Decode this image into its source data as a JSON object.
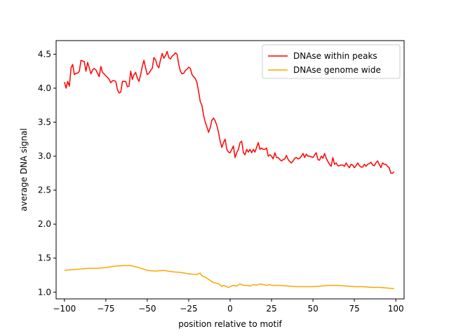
{
  "chart_data": {
    "type": "line",
    "title": "",
    "xlabel": "position relative to motif",
    "ylabel": "average DNA signal",
    "xlim": [
      -105,
      105
    ],
    "ylim": [
      0.9,
      4.7
    ],
    "xticks": [
      -100,
      -75,
      -50,
      -25,
      0,
      25,
      50,
      75,
      100
    ],
    "yticks": [
      1.0,
      1.5,
      2.0,
      2.5,
      3.0,
      3.5,
      4.0,
      4.5
    ],
    "grid": false,
    "legend_position": "top-right",
    "series": [
      {
        "name": "DNAse within peaks",
        "color": "#ff0000",
        "points": [
          [
            -100,
            4.09
          ],
          [
            -99,
            4.0
          ],
          [
            -98,
            4.1
          ],
          [
            -97,
            4.03
          ],
          [
            -96,
            4.3
          ],
          [
            -95,
            4.35
          ],
          [
            -94,
            4.2
          ],
          [
            -93,
            4.22
          ],
          [
            -92,
            4.22
          ],
          [
            -91,
            4.25
          ],
          [
            -90,
            4.41
          ],
          [
            -89,
            4.4
          ],
          [
            -88,
            4.39
          ],
          [
            -87,
            4.25
          ],
          [
            -86,
            4.38
          ],
          [
            -85,
            4.3
          ],
          [
            -84,
            4.21
          ],
          [
            -83,
            4.27
          ],
          [
            -82,
            4.29
          ],
          [
            -81,
            4.27
          ],
          [
            -80,
            4.22
          ],
          [
            -79,
            4.17
          ],
          [
            -78,
            4.32
          ],
          [
            -77,
            4.23
          ],
          [
            -76,
            4.21
          ],
          [
            -75,
            4.18
          ],
          [
            -74,
            4.16
          ],
          [
            -73,
            4.13
          ],
          [
            -72,
            4.08
          ],
          [
            -71,
            4.11
          ],
          [
            -70,
            4.11
          ],
          [
            -69,
            4.1
          ],
          [
            -68,
            3.98
          ],
          [
            -67,
            3.93
          ],
          [
            -66,
            3.94
          ],
          [
            -65,
            4.1
          ],
          [
            -64,
            4.1
          ],
          [
            -63,
            4.1
          ],
          [
            -62,
            4.02
          ],
          [
            -61,
            4.03
          ],
          [
            -60,
            4.25
          ],
          [
            -59,
            4.13
          ],
          [
            -58,
            4.2
          ],
          [
            -57,
            4.23
          ],
          [
            -56,
            4.15
          ],
          [
            -55,
            4.1
          ],
          [
            -54,
            4.2
          ],
          [
            -53,
            4.32
          ],
          [
            -52,
            4.41
          ],
          [
            -51,
            4.3
          ],
          [
            -50,
            4.2
          ],
          [
            -49,
            4.22
          ],
          [
            -48,
            4.26
          ],
          [
            -47,
            4.29
          ],
          [
            -46,
            4.45
          ],
          [
            -45,
            4.42
          ],
          [
            -44,
            4.33
          ],
          [
            -43,
            4.3
          ],
          [
            -42,
            4.42
          ],
          [
            -41,
            4.51
          ],
          [
            -40,
            4.44
          ],
          [
            -39,
            4.48
          ],
          [
            -38,
            4.54
          ],
          [
            -37,
            4.45
          ],
          [
            -36,
            4.43
          ],
          [
            -35,
            4.47
          ],
          [
            -34,
            4.49
          ],
          [
            -33,
            4.52
          ],
          [
            -32,
            4.5
          ],
          [
            -31,
            4.35
          ],
          [
            -30,
            4.25
          ],
          [
            -29,
            4.21
          ],
          [
            -28,
            4.22
          ],
          [
            -27,
            4.26
          ],
          [
            -26,
            4.28
          ],
          [
            -25,
            4.31
          ],
          [
            -24,
            4.29
          ],
          [
            -23,
            4.2
          ],
          [
            -22,
            4.17
          ],
          [
            -21,
            4.14
          ],
          [
            -20,
            4.08
          ],
          [
            -19,
            3.95
          ],
          [
            -18,
            3.8
          ],
          [
            -17,
            3.75
          ],
          [
            -16,
            3.6
          ],
          [
            -15,
            3.5
          ],
          [
            -14,
            3.43
          ],
          [
            -13,
            3.35
          ],
          [
            -12,
            3.42
          ],
          [
            -11,
            3.53
          ],
          [
            -10,
            3.56
          ],
          [
            -9,
            3.52
          ],
          [
            -8,
            3.45
          ],
          [
            -7,
            3.35
          ],
          [
            -6,
            3.22
          ],
          [
            -5,
            3.13
          ],
          [
            -4,
            3.2
          ],
          [
            -3,
            3.25
          ],
          [
            -2,
            3.1
          ],
          [
            -1,
            3.06
          ],
          [
            0,
            3.05
          ],
          [
            1,
            3.1
          ],
          [
            2,
            3.15
          ],
          [
            3,
            2.98
          ],
          [
            4,
            3.05
          ],
          [
            5,
            3.1
          ],
          [
            6,
            3.2
          ],
          [
            7,
            3.22
          ],
          [
            8,
            3.05
          ],
          [
            9,
            3.02
          ],
          [
            10,
            3.1
          ],
          [
            11,
            3.06
          ],
          [
            12,
            3.1
          ],
          [
            13,
            3.05
          ],
          [
            14,
            3.1
          ],
          [
            15,
            3.06
          ],
          [
            16,
            3.13
          ],
          [
            17,
            3.2
          ],
          [
            18,
            3.1
          ],
          [
            19,
            3.12
          ],
          [
            20,
            3.1
          ],
          [
            21,
            3.1
          ],
          [
            22,
            3.12
          ],
          [
            23,
            3.0
          ],
          [
            24,
            3.02
          ],
          [
            25,
            3.0
          ],
          [
            26,
            2.96
          ],
          [
            27,
            3.05
          ],
          [
            28,
            2.98
          ],
          [
            29,
            2.98
          ],
          [
            30,
            2.95
          ],
          [
            31,
            2.93
          ],
          [
            32,
            2.95
          ],
          [
            33,
            2.96
          ],
          [
            34,
            3.01
          ],
          [
            35,
            2.95
          ],
          [
            36,
            2.92
          ],
          [
            37,
            2.9
          ],
          [
            38,
            2.93
          ],
          [
            39,
            2.97
          ],
          [
            40,
            2.98
          ],
          [
            41,
            2.96
          ],
          [
            42,
            2.97
          ],
          [
            43,
            3.0
          ],
          [
            44,
            3.04
          ],
          [
            45,
            2.98
          ],
          [
            46,
            3.03
          ],
          [
            47,
            3.0
          ],
          [
            48,
            3.0
          ],
          [
            49,
            2.99
          ],
          [
            50,
            2.98
          ],
          [
            51,
            3.02
          ],
          [
            52,
            3.05
          ],
          [
            53,
            2.95
          ],
          [
            54,
            2.94
          ],
          [
            55,
            3.0
          ],
          [
            56,
            2.97
          ],
          [
            57,
            3.04
          ],
          [
            58,
            2.97
          ],
          [
            59,
            2.92
          ],
          [
            60,
            2.88
          ],
          [
            61,
            2.85
          ],
          [
            62,
            2.98
          ],
          [
            63,
            2.88
          ],
          [
            64,
            2.9
          ],
          [
            65,
            2.86
          ],
          [
            66,
            2.86
          ],
          [
            67,
            2.87
          ],
          [
            68,
            2.87
          ],
          [
            69,
            2.85
          ],
          [
            70,
            2.9
          ],
          [
            71,
            2.86
          ],
          [
            72,
            2.83
          ],
          [
            73,
            2.88
          ],
          [
            74,
            2.87
          ],
          [
            75,
            2.83
          ],
          [
            76,
            2.86
          ],
          [
            77,
            2.9
          ],
          [
            78,
            2.86
          ],
          [
            79,
            2.84
          ],
          [
            80,
            2.84
          ],
          [
            81,
            2.88
          ],
          [
            82,
            2.85
          ],
          [
            83,
            2.88
          ],
          [
            84,
            2.89
          ],
          [
            85,
            2.91
          ],
          [
            86,
            2.87
          ],
          [
            87,
            2.86
          ],
          [
            88,
            2.9
          ],
          [
            89,
            2.93
          ],
          [
            90,
            2.88
          ],
          [
            91,
            2.83
          ],
          [
            92,
            2.9
          ],
          [
            93,
            2.88
          ],
          [
            94,
            2.88
          ],
          [
            95,
            2.85
          ],
          [
            96,
            2.83
          ],
          [
            97,
            2.75
          ],
          [
            98,
            2.75
          ],
          [
            99,
            2.77
          ]
        ]
      },
      {
        "name": "DNAse genome wide",
        "color": "#ffa500",
        "points": [
          [
            -100,
            1.32
          ],
          [
            -95,
            1.33
          ],
          [
            -90,
            1.34
          ],
          [
            -85,
            1.35
          ],
          [
            -80,
            1.35
          ],
          [
            -75,
            1.36
          ],
          [
            -70,
            1.38
          ],
          [
            -65,
            1.39
          ],
          [
            -60,
            1.39
          ],
          [
            -55,
            1.36
          ],
          [
            -50,
            1.32
          ],
          [
            -45,
            1.31
          ],
          [
            -40,
            1.32
          ],
          [
            -35,
            1.3
          ],
          [
            -30,
            1.29
          ],
          [
            -25,
            1.27
          ],
          [
            -22,
            1.26
          ],
          [
            -20,
            1.26
          ],
          [
            -18,
            1.28
          ],
          [
            -17,
            1.24
          ],
          [
            -15,
            1.22
          ],
          [
            -12,
            1.17
          ],
          [
            -10,
            1.14
          ],
          [
            -8,
            1.13
          ],
          [
            -6,
            1.11
          ],
          [
            -5,
            1.08
          ],
          [
            -4,
            1.1
          ],
          [
            -3,
            1.09
          ],
          [
            -1,
            1.07
          ],
          [
            0,
            1.08
          ],
          [
            2,
            1.1
          ],
          [
            4,
            1.09
          ],
          [
            6,
            1.12
          ],
          [
            8,
            1.1
          ],
          [
            10,
            1.1
          ],
          [
            12,
            1.09
          ],
          [
            14,
            1.11
          ],
          [
            16,
            1.1
          ],
          [
            18,
            1.12
          ],
          [
            20,
            1.11
          ],
          [
            22,
            1.1
          ],
          [
            24,
            1.11
          ],
          [
            25,
            1.1
          ],
          [
            30,
            1.1
          ],
          [
            35,
            1.09
          ],
          [
            40,
            1.08
          ],
          [
            45,
            1.08
          ],
          [
            50,
            1.08
          ],
          [
            55,
            1.09
          ],
          [
            60,
            1.1
          ],
          [
            65,
            1.1
          ],
          [
            70,
            1.09
          ],
          [
            75,
            1.08
          ],
          [
            80,
            1.08
          ],
          [
            85,
            1.07
          ],
          [
            90,
            1.07
          ],
          [
            95,
            1.06
          ],
          [
            99,
            1.05
          ]
        ]
      }
    ]
  }
}
